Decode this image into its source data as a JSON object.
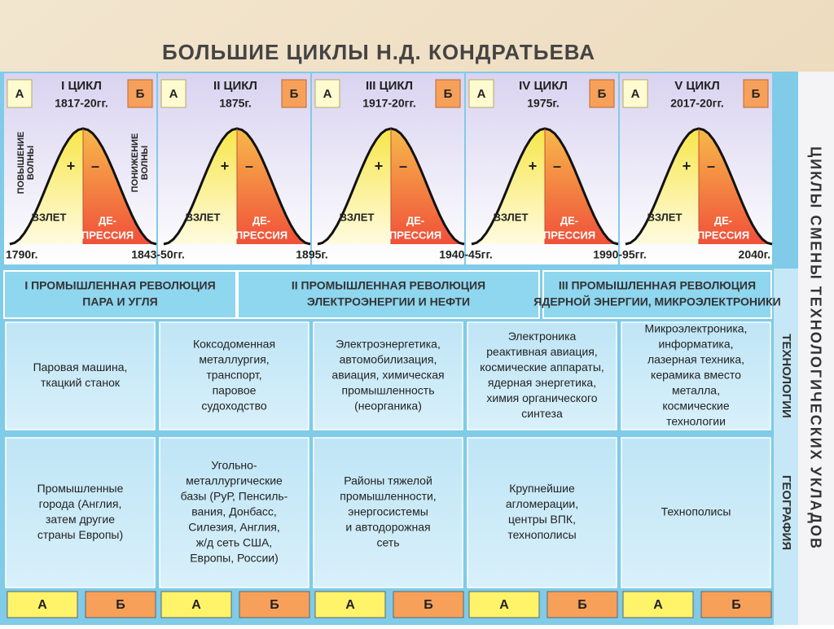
{
  "title": "БОЛЬШИЕ ЦИКЛЫ Н.Д. КОНДРАТЬЕВА",
  "side_label": "ЦИКЛЫ СМЕНЫ ТЕХНОЛОГИЧЕСКИХ УКЛАДОВ",
  "wave_labels": {
    "rise": [
      "ПОВЫШЕНИЕ",
      "ВОЛНЫ"
    ],
    "fall": [
      "ПОНИЖЕНИЕ",
      "ВОЛНЫ"
    ]
  },
  "cycles": [
    {
      "phase_a": "А",
      "name": "I ЦИКЛ",
      "years": "1817-20гг.",
      "phase_b": "Б",
      "plus": "+",
      "minus": "–",
      "upswing": "ВЗЛЕТ",
      "depression": [
        "ДЕ-",
        "ПРЕССИЯ"
      ]
    },
    {
      "phase_a": "А",
      "name": "II ЦИКЛ",
      "years": "1875г.",
      "phase_b": "Б",
      "plus": "+",
      "minus": "–",
      "upswing": "ВЗЛЕТ",
      "depression": [
        "ДЕ-",
        "ПРЕССИЯ"
      ]
    },
    {
      "phase_a": "А",
      "name": "III ЦИКЛ",
      "years": "1917-20гг.",
      "phase_b": "Б",
      "plus": "+",
      "minus": "–",
      "upswing": "ВЗЛЕТ",
      "depression": [
        "ДЕ-",
        "ПРЕССИЯ"
      ]
    },
    {
      "phase_a": "А",
      "name": "IV ЦИКЛ",
      "years": "1975г.",
      "phase_b": "Б",
      "plus": "+",
      "minus": "–",
      "upswing": "ВЗЛЕТ",
      "depression": [
        "ДЕ-",
        "ПРЕССИЯ"
      ]
    },
    {
      "phase_a": "А",
      "name": "V ЦИКЛ",
      "years": "2017-20гг.",
      "phase_b": "Б",
      "plus": "+",
      "minus": "–",
      "upswing": "ВЗЛЕТ",
      "depression": [
        "ДЕ-",
        "ПРЕССИЯ"
      ]
    }
  ],
  "dates": [
    "1790г.",
    "1843-50гг.",
    "1895г.",
    "1940-45гг.",
    "1990-95гг.",
    "2040г."
  ],
  "revolutions": [
    {
      "lines": [
        "I ПРОМЫШЛЕННАЯ РЕВОЛЮЦИЯ",
        "ПАРА И УГЛЯ"
      ]
    },
    {
      "lines": [
        "II ПРОМЫШЛЕННАЯ РЕВОЛЮЦИЯ",
        "ЭЛЕКТРОЭНЕРГИИ И НЕФТИ"
      ]
    },
    {
      "lines": [
        "III ПРОМЫШЛЕННАЯ РЕВОЛЮЦИЯ",
        "ЯДЕРНОЙ ЭНЕРГИИ, МИКРОЭЛЕКТРОНИКИ"
      ]
    }
  ],
  "rows": [
    {
      "label": "ТЕХНОЛОГИИ",
      "cells": [
        [
          "Паровая машина,",
          "ткацкий станок"
        ],
        [
          "Коксодоменная",
          "металлургия,",
          "транспорт,",
          "паровое",
          "судоходство"
        ],
        [
          "Электроэнергетика,",
          "автомобилизация,",
          "авиация, химическая",
          "промышленность",
          "(неорганика)"
        ],
        [
          "Электроника",
          "реактивная авиация,",
          "космические аппараты,",
          "ядерная энергетика,",
          "химия органического",
          "синтеза"
        ],
        [
          "Микроэлектроника,",
          "информатика,",
          "лазерная техника,",
          "керамика вместо",
          "металла,",
          "космические",
          "технологии"
        ]
      ]
    },
    {
      "label": "ГЕОГРАФИЯ",
      "cells": [
        [
          "Промышленные",
          "города (Англия,",
          "затем другие",
          "страны Европы)"
        ],
        [
          "Угольно-",
          "металлургические",
          "базы (РуР, Пенсиль-",
          "вания, Донбасс,",
          "Силезия, Англия,",
          "ж/д сеть США,",
          "Европы, России)"
        ],
        [
          "Районы тяжелой",
          "промышленности,",
          "энергосистемы",
          "и автодорожная",
          "сеть"
        ],
        [
          "Крупнейшие",
          "агломерации,",
          "центры ВПК,",
          "технополисы"
        ],
        [
          "Технополисы"
        ]
      ]
    }
  ],
  "bottom_phases": [
    [
      "А",
      "Б"
    ],
    [
      "А",
      "Б"
    ],
    [
      "А",
      "Б"
    ],
    [
      "А",
      "Б"
    ],
    [
      "А",
      "Б"
    ]
  ]
}
